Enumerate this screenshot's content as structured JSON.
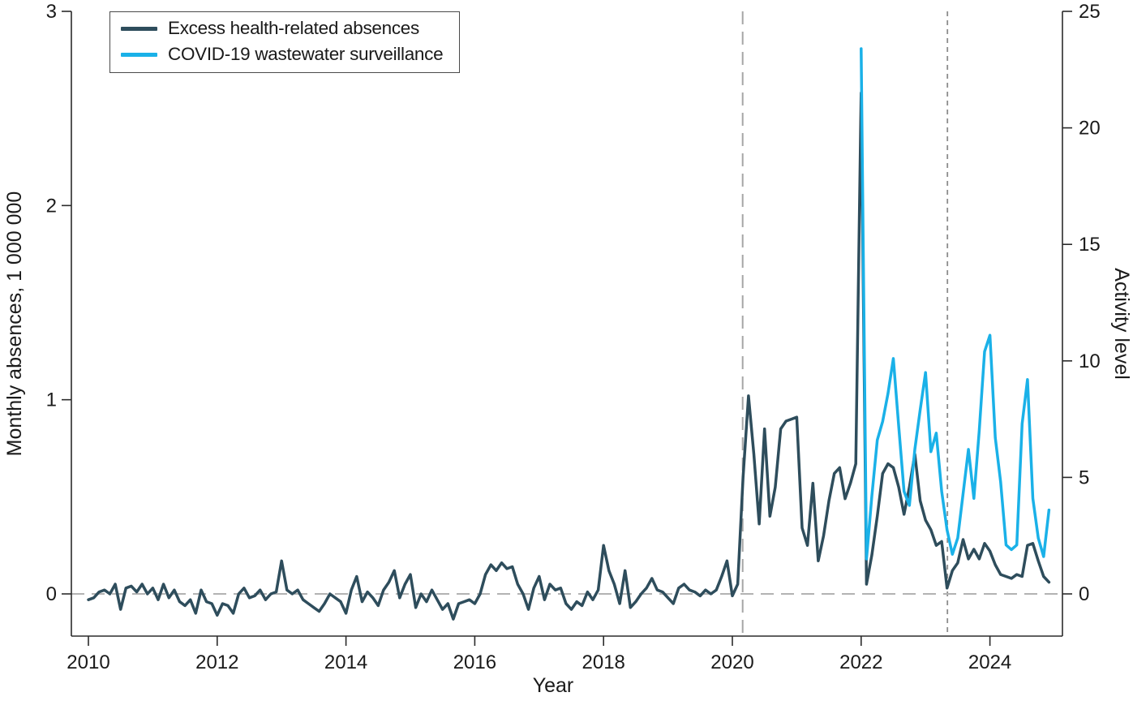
{
  "figure": {
    "xlabel": "Year",
    "ylabel_left": "Monthly absences, 1 000 000",
    "ylabel_right": "Activity level"
  },
  "legend": {
    "position": "top-left",
    "items": [
      {
        "label": "Excess health-related absences",
        "color": "#2E4D5C"
      },
      {
        "label": "COVID-19 wastewater surveillance",
        "color": "#1AB1E8"
      }
    ]
  },
  "chart_data": {
    "type": "line",
    "title": "",
    "xlabel": "Year",
    "ylabel_left": "Monthly absences, 1 000 000",
    "ylabel_right": "Activity level",
    "x_ticks": [
      2010,
      2012,
      2014,
      2016,
      2018,
      2020,
      2022,
      2024
    ],
    "xlim": [
      2009.74,
      2025.13
    ],
    "yticks_left": [
      0,
      1,
      2,
      3
    ],
    "ylim_left": [
      -0.217,
      3
    ],
    "yticks_right": [
      0,
      5,
      10,
      15,
      20,
      25
    ],
    "ylim_right": [
      -1.81,
      25
    ],
    "grid": "none",
    "legend_position": "top-left",
    "frame": {
      "spine_color": "#2b2b2b",
      "spine_width": 1.6,
      "tick_len": 12
    },
    "reference_lines": {
      "horizontal": [
        {
          "value_left_axis": 0,
          "color": "#b3b3b3",
          "dash": "16 9",
          "width": 2
        }
      ],
      "vertical": [
        {
          "x_year": 2020.16,
          "color": "#a6a6a6",
          "dash": "16 9",
          "width": 2
        },
        {
          "x_year": 2023.34,
          "color": "#8c8c8c",
          "dash": "6 5",
          "width": 1.8
        }
      ]
    },
    "series": [
      {
        "name": "Excess health-related absences",
        "axis": "left",
        "color": "#2E4D5C",
        "width": 3.5,
        "start_year": 2010,
        "start_month": 1,
        "monthly_values": [
          -0.03,
          -0.02,
          0.01,
          0.02,
          0.0,
          0.05,
          -0.08,
          0.03,
          0.04,
          0.01,
          0.05,
          0.0,
          0.03,
          -0.03,
          0.05,
          -0.02,
          0.02,
          -0.04,
          -0.06,
          -0.03,
          -0.1,
          0.02,
          -0.04,
          -0.05,
          -0.11,
          -0.05,
          -0.06,
          -0.1,
          0.0,
          0.03,
          -0.02,
          -0.01,
          0.02,
          -0.03,
          0.0,
          0.01,
          0.17,
          0.02,
          0.0,
          0.02,
          -0.03,
          -0.05,
          -0.07,
          -0.09,
          -0.05,
          0.0,
          -0.02,
          -0.04,
          -0.1,
          0.02,
          0.09,
          -0.04,
          0.01,
          -0.02,
          -0.06,
          0.02,
          0.06,
          0.12,
          -0.02,
          0.05,
          0.1,
          -0.07,
          0.0,
          -0.04,
          0.02,
          -0.03,
          -0.08,
          -0.05,
          -0.13,
          -0.05,
          -0.04,
          -0.03,
          -0.05,
          0.0,
          0.1,
          0.15,
          0.12,
          0.16,
          0.13,
          0.14,
          0.05,
          0.0,
          -0.08,
          0.03,
          0.09,
          -0.03,
          0.05,
          0.02,
          0.03,
          -0.05,
          -0.08,
          -0.04,
          -0.06,
          0.01,
          -0.03,
          0.02,
          0.25,
          0.12,
          0.05,
          -0.05,
          0.12,
          -0.07,
          -0.04,
          0.0,
          0.03,
          0.08,
          0.02,
          0.01,
          -0.02,
          -0.05,
          0.03,
          0.05,
          0.02,
          0.01,
          -0.01,
          0.02,
          0.0,
          0.02,
          0.09,
          0.17,
          -0.01,
          0.05,
          0.6,
          1.02,
          0.72,
          0.36,
          0.85,
          0.4,
          0.55,
          0.85,
          0.89,
          0.9,
          0.91,
          0.34,
          0.25,
          0.57,
          0.17,
          0.3,
          0.48,
          0.62,
          0.65,
          0.49,
          0.57,
          0.67,
          2.58,
          0.05,
          0.2,
          0.4,
          0.62,
          0.67,
          0.65,
          0.55,
          0.41,
          0.55,
          0.72,
          0.48,
          0.38,
          0.33,
          0.25,
          0.27,
          0.03,
          0.12,
          0.16,
          0.28,
          0.18,
          0.23,
          0.18,
          0.26,
          0.22,
          0.15,
          0.1,
          0.09,
          0.08,
          0.1,
          0.09,
          0.25,
          0.26,
          0.17,
          0.09,
          0.06
        ]
      },
      {
        "name": "COVID-19 wastewater surveillance",
        "axis": "right",
        "color": "#1AB1E8",
        "width": 3.5,
        "start_year": 2022,
        "start_month": 1,
        "monthly_values": [
          23.4,
          1.5,
          4.2,
          6.6,
          7.4,
          8.6,
          10.1,
          7.2,
          4.4,
          3.8,
          6.2,
          7.9,
          9.5,
          6.1,
          6.9,
          4.4,
          2.75,
          1.7,
          2.4,
          4.3,
          6.2,
          4.1,
          7.0,
          10.4,
          11.1,
          6.7,
          4.8,
          2.1,
          1.9,
          2.1,
          7.3,
          9.2,
          4.1,
          2.4,
          1.6,
          3.6
        ]
      }
    ]
  }
}
